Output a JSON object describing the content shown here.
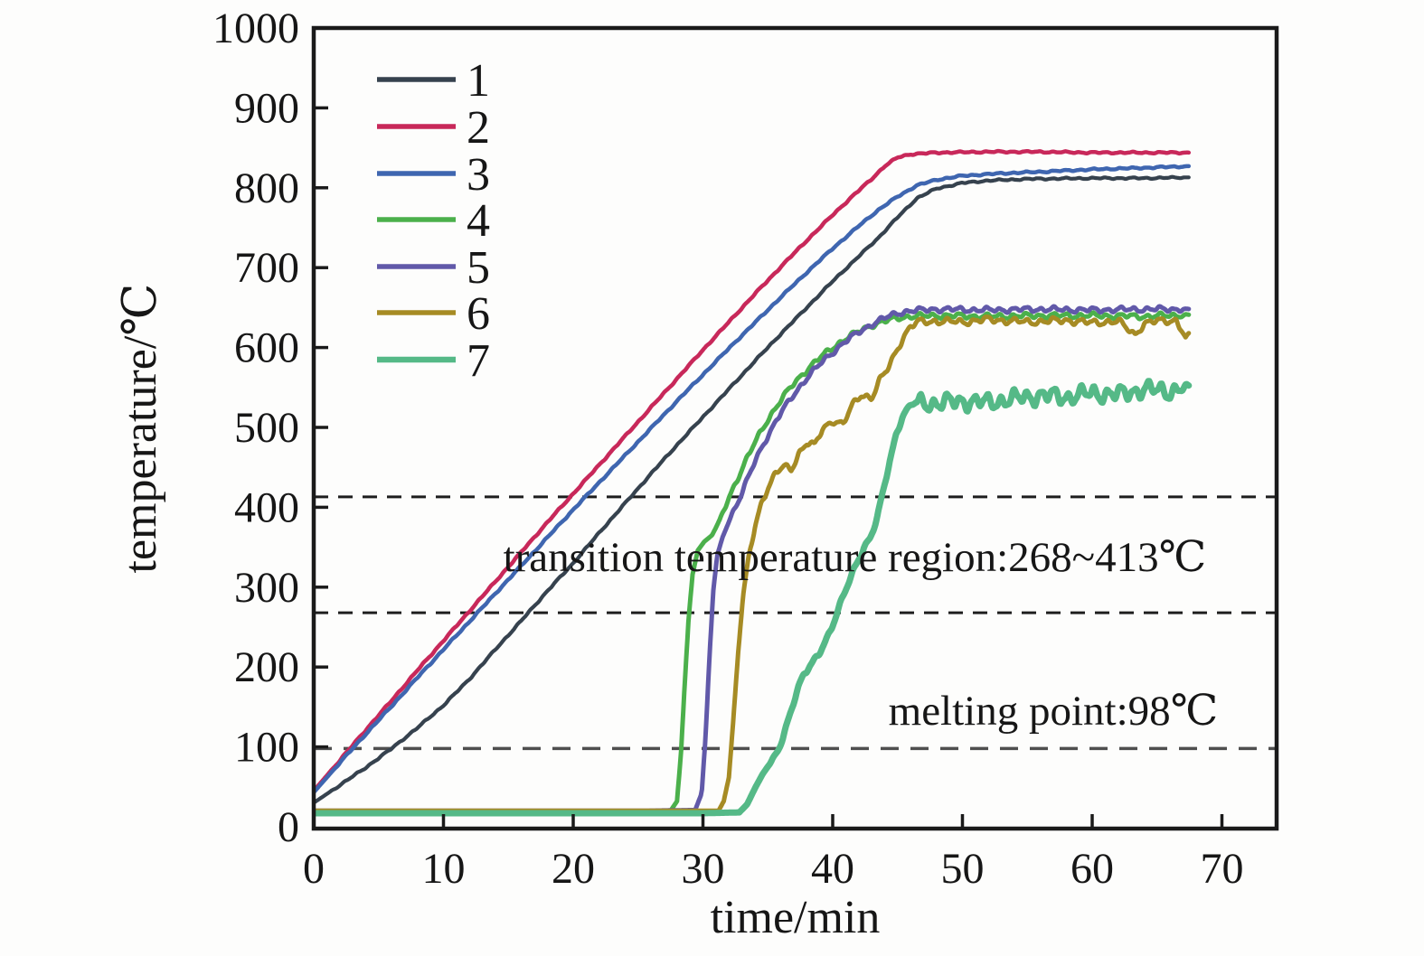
{
  "figure": {
    "background": "#fdfdfc"
  },
  "chart_data": {
    "type": "line",
    "title": "",
    "xlabel": "time/min",
    "ylabel": "temperature/℃",
    "xlim": [
      0,
      74.2
    ],
    "ylim": [
      -2,
      1000
    ],
    "x_ticks": [
      0,
      10,
      20,
      30,
      40,
      50,
      60,
      70
    ],
    "y_ticks": [
      0,
      100,
      200,
      300,
      400,
      500,
      600,
      700,
      800,
      900,
      1000
    ],
    "grid": false,
    "legend": {
      "position": "upper-left",
      "entries": [
        {
          "label": "1",
          "color": "#36424e"
        },
        {
          "label": "2",
          "color": "#c8285a"
        },
        {
          "label": "3",
          "color": "#3f66b0"
        },
        {
          "label": "4",
          "color": "#4bb04b"
        },
        {
          "label": "5",
          "color": "#6159a9"
        },
        {
          "label": "6",
          "color": "#a68b24"
        },
        {
          "label": "7",
          "color": "#55b987"
        }
      ]
    },
    "guides": [
      {
        "temp": 413,
        "color": "#1e1e1e",
        "dash": "16 11",
        "width": 3
      },
      {
        "temp": 268,
        "color": "#1e1e1e",
        "dash": "16 11",
        "width": 3
      },
      {
        "temp": 98,
        "color": "#4f4f4f",
        "dash": "20 13",
        "width": 3.5
      }
    ],
    "annotations": [
      {
        "text": "transition temperature region:268~413℃",
        "t": 41.7,
        "temp": 320
      },
      {
        "text": "melting point:98℃",
        "t": 57.0,
        "temp": 128
      }
    ],
    "series": [
      {
        "name": "1",
        "color": "#36424e",
        "width": 4.2,
        "seed": 11,
        "noise": [
          {
            "from": 1,
            "to": 67.5,
            "amp": 1.2
          }
        ],
        "points": [
          [
            0,
            30
          ],
          [
            2,
            52
          ],
          [
            4,
            74
          ],
          [
            6,
            98
          ],
          [
            8,
            124
          ],
          [
            10,
            152
          ],
          [
            12,
            185
          ],
          [
            14,
            222
          ],
          [
            16,
            258
          ],
          [
            18,
            295
          ],
          [
            20,
            330
          ],
          [
            22,
            368
          ],
          [
            24,
            405
          ],
          [
            26,
            442
          ],
          [
            28,
            478
          ],
          [
            30,
            513
          ],
          [
            32,
            548
          ],
          [
            34,
            583
          ],
          [
            36,
            617
          ],
          [
            38,
            650
          ],
          [
            40,
            683
          ],
          [
            42,
            714
          ],
          [
            43.5,
            737
          ],
          [
            45,
            763
          ],
          [
            46.5,
            787
          ],
          [
            48,
            799
          ],
          [
            50,
            806
          ],
          [
            52,
            809
          ],
          [
            55,
            811
          ],
          [
            60,
            812
          ],
          [
            64,
            812
          ],
          [
            67.5,
            813
          ]
        ]
      },
      {
        "name": "2",
        "color": "#c8285a",
        "width": 4.5,
        "seed": 22,
        "noise": [
          {
            "from": 1,
            "to": 67.5,
            "amp": 1.2
          }
        ],
        "points": [
          [
            0,
            45
          ],
          [
            2,
            83
          ],
          [
            4,
            121
          ],
          [
            6,
            158
          ],
          [
            8,
            196
          ],
          [
            10,
            233
          ],
          [
            12,
            270
          ],
          [
            14,
            307
          ],
          [
            16,
            344
          ],
          [
            18,
            381
          ],
          [
            20,
            417
          ],
          [
            22,
            453
          ],
          [
            24,
            489
          ],
          [
            26,
            525
          ],
          [
            28,
            561
          ],
          [
            30,
            597
          ],
          [
            32,
            632
          ],
          [
            34,
            667
          ],
          [
            36,
            701
          ],
          [
            38,
            734
          ],
          [
            40,
            766
          ],
          [
            41.5,
            789
          ],
          [
            43,
            811
          ],
          [
            44,
            827
          ],
          [
            45,
            838
          ],
          [
            46,
            842
          ],
          [
            48,
            844
          ],
          [
            52,
            845
          ],
          [
            56,
            845
          ],
          [
            60,
            844
          ],
          [
            64,
            844
          ],
          [
            67.5,
            844
          ]
        ]
      },
      {
        "name": "3",
        "color": "#3f66b0",
        "width": 4.5,
        "seed": 33,
        "noise": [
          {
            "from": 1,
            "to": 67.5,
            "amp": 1.2
          }
        ],
        "points": [
          [
            0,
            43
          ],
          [
            2,
            80
          ],
          [
            4,
            116
          ],
          [
            6,
            151
          ],
          [
            8,
            187
          ],
          [
            10,
            222
          ],
          [
            12,
            257
          ],
          [
            14,
            292
          ],
          [
            16,
            327
          ],
          [
            18,
            362
          ],
          [
            20,
            397
          ],
          [
            22,
            431
          ],
          [
            24,
            465
          ],
          [
            26,
            499
          ],
          [
            28,
            533
          ],
          [
            30,
            566
          ],
          [
            32,
            599
          ],
          [
            34,
            631
          ],
          [
            36,
            663
          ],
          [
            38,
            694
          ],
          [
            40,
            724
          ],
          [
            42,
            752
          ],
          [
            43.5,
            772
          ],
          [
            45,
            789
          ],
          [
            46.5,
            803
          ],
          [
            48,
            810
          ],
          [
            50,
            815
          ],
          [
            53,
            818
          ],
          [
            56,
            820
          ],
          [
            60,
            823
          ],
          [
            64,
            825
          ],
          [
            67.5,
            827
          ]
        ]
      },
      {
        "name": "4",
        "color": "#4bb04b",
        "width": 5,
        "seed": 44,
        "noise": [
          {
            "from": 31,
            "to": 67.5,
            "amp": 4
          }
        ],
        "points": [
          [
            0,
            18
          ],
          [
            10,
            18
          ],
          [
            20,
            19
          ],
          [
            25,
            19
          ],
          [
            27.5,
            20
          ],
          [
            28,
            32
          ],
          [
            28.3,
            90
          ],
          [
            28.6,
            180
          ],
          [
            28.9,
            262
          ],
          [
            29.2,
            316
          ],
          [
            29.6,
            346
          ],
          [
            30.1,
            357
          ],
          [
            30.7,
            365
          ],
          [
            31.3,
            384
          ],
          [
            32,
            412
          ],
          [
            33,
            448
          ],
          [
            34,
            481
          ],
          [
            35,
            510
          ],
          [
            36,
            534
          ],
          [
            37,
            555
          ],
          [
            38,
            572
          ],
          [
            39,
            587
          ],
          [
            40,
            600
          ],
          [
            41,
            611
          ],
          [
            42,
            620
          ],
          [
            43,
            628
          ],
          [
            44,
            633
          ],
          [
            45,
            637
          ],
          [
            46,
            639
          ],
          [
            48,
            640
          ],
          [
            52,
            639
          ],
          [
            56,
            640
          ],
          [
            60,
            640
          ],
          [
            64,
            639
          ],
          [
            67.5,
            641
          ]
        ]
      },
      {
        "name": "5",
        "color": "#6159a9",
        "width": 5,
        "seed": 55,
        "noise": [
          {
            "from": 31.5,
            "to": 67.5,
            "amp": 4
          }
        ],
        "points": [
          [
            0,
            20
          ],
          [
            10,
            20
          ],
          [
            20,
            20
          ],
          [
            25,
            20
          ],
          [
            29.4,
            21
          ],
          [
            29.9,
            42
          ],
          [
            30.2,
            112
          ],
          [
            30.5,
            212
          ],
          [
            30.8,
            296
          ],
          [
            31.1,
            340
          ],
          [
            31.5,
            362
          ],
          [
            32,
            383
          ],
          [
            33,
            418
          ],
          [
            34,
            457
          ],
          [
            35,
            490
          ],
          [
            36,
            518
          ],
          [
            37,
            541
          ],
          [
            38,
            562
          ],
          [
            39,
            579
          ],
          [
            40,
            594
          ],
          [
            41,
            608
          ],
          [
            42,
            619
          ],
          [
            43,
            629
          ],
          [
            44,
            637
          ],
          [
            45,
            643
          ],
          [
            46,
            646
          ],
          [
            48,
            648
          ],
          [
            52,
            647
          ],
          [
            56,
            648
          ],
          [
            60,
            647
          ],
          [
            64,
            648
          ],
          [
            67.5,
            648
          ]
        ]
      },
      {
        "name": "6",
        "color": "#a68b24",
        "width": 5,
        "seed": 66,
        "noise": [
          {
            "from": 33,
            "to": 67.5,
            "amp": 5
          }
        ],
        "points": [
          [
            0,
            20
          ],
          [
            10,
            20
          ],
          [
            20,
            20
          ],
          [
            25,
            20
          ],
          [
            31.2,
            20
          ],
          [
            31.6,
            32
          ],
          [
            32,
            62
          ],
          [
            32.3,
            125
          ],
          [
            32.7,
            215
          ],
          [
            33.1,
            290
          ],
          [
            33.5,
            335
          ],
          [
            34,
            375
          ],
          [
            34.5,
            405
          ],
          [
            35,
            425
          ],
          [
            35.6,
            442
          ],
          [
            36.2,
            451
          ],
          [
            36.8,
            447
          ],
          [
            37.4,
            468
          ],
          [
            38,
            481
          ],
          [
            38.6,
            477
          ],
          [
            39.2,
            497
          ],
          [
            40,
            509
          ],
          [
            40.8,
            504
          ],
          [
            41.5,
            527
          ],
          [
            42.2,
            541
          ],
          [
            43,
            537
          ],
          [
            43.6,
            558
          ],
          [
            44.2,
            572
          ],
          [
            44.8,
            592
          ],
          [
            45.4,
            612
          ],
          [
            46,
            626
          ],
          [
            46.6,
            632
          ],
          [
            48,
            633
          ],
          [
            50,
            632
          ],
          [
            52,
            635
          ],
          [
            55,
            632
          ],
          [
            58,
            634
          ],
          [
            60,
            631
          ],
          [
            62,
            633
          ],
          [
            63.3,
            616
          ],
          [
            64,
            630
          ],
          [
            65,
            633
          ],
          [
            66.5,
            634
          ],
          [
            67.2,
            612
          ],
          [
            67.5,
            619
          ]
        ]
      },
      {
        "name": "7",
        "color": "#55b987",
        "width": 7,
        "seed": 77,
        "noise": [
          {
            "from": 35,
            "to": 46,
            "amp": 4
          },
          {
            "from": 46,
            "to": 67.5,
            "amp": 13
          }
        ],
        "points": [
          [
            0,
            17
          ],
          [
            10,
            17
          ],
          [
            20,
            17
          ],
          [
            30,
            17
          ],
          [
            32.8,
            18
          ],
          [
            33.4,
            28
          ],
          [
            34,
            48
          ],
          [
            34.6,
            66
          ],
          [
            35.2,
            80
          ],
          [
            35.8,
            95
          ],
          [
            36.2,
            112
          ],
          [
            36.6,
            135
          ],
          [
            37,
            158
          ],
          [
            37.4,
            178
          ],
          [
            37.8,
            192
          ],
          [
            38.4,
            203
          ],
          [
            39,
            218
          ],
          [
            39.6,
            238
          ],
          [
            40.2,
            262
          ],
          [
            40.8,
            288
          ],
          [
            41.4,
            312
          ],
          [
            41.9,
            332
          ],
          [
            42.4,
            350
          ],
          [
            42.9,
            362
          ],
          [
            43.4,
            385
          ],
          [
            43.9,
            420
          ],
          [
            44.4,
            458
          ],
          [
            44.9,
            492
          ],
          [
            45.4,
            515
          ],
          [
            45.9,
            527
          ],
          [
            46.4,
            531
          ],
          [
            48,
            530
          ],
          [
            50,
            533
          ],
          [
            52,
            531
          ],
          [
            54,
            536
          ],
          [
            56,
            540
          ],
          [
            58,
            538
          ],
          [
            60,
            543
          ],
          [
            62,
            541
          ],
          [
            64,
            548
          ],
          [
            66,
            545
          ],
          [
            67.5,
            552
          ]
        ]
      }
    ]
  }
}
